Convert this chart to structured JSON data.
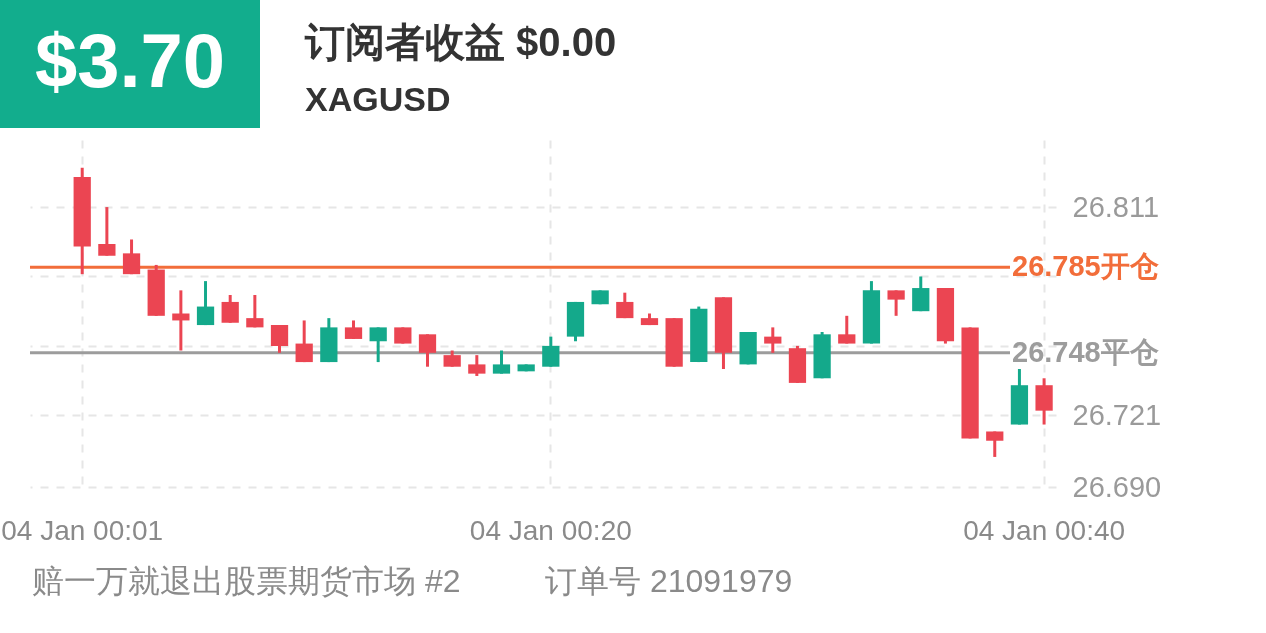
{
  "chart_data": {
    "type": "candlestick",
    "title": "订阅者收益 $0.00",
    "subtitle": "XAGUSD",
    "categories": [
      "04 Jan 00:01",
      null,
      null,
      null,
      null,
      null,
      null,
      null,
      null,
      null,
      null,
      null,
      null,
      null,
      null,
      null,
      null,
      null,
      null,
      "04 Jan 00:20",
      null,
      null,
      null,
      null,
      null,
      null,
      null,
      null,
      null,
      null,
      null,
      null,
      null,
      null,
      null,
      null,
      null,
      null,
      null,
      "04 Jan 00:40"
    ],
    "ohlc": [
      [
        26.824,
        26.828,
        26.782,
        26.794
      ],
      [
        26.795,
        26.811,
        26.79,
        26.79
      ],
      [
        26.791,
        26.797,
        26.782,
        26.782
      ],
      [
        26.784,
        26.786,
        26.764,
        26.764
      ],
      [
        26.765,
        26.775,
        26.749,
        26.762
      ],
      [
        26.76,
        26.779,
        26.76,
        26.768
      ],
      [
        26.77,
        26.773,
        26.761,
        26.761
      ],
      [
        26.763,
        26.773,
        26.759,
        26.759
      ],
      [
        26.76,
        26.76,
        26.748,
        26.751
      ],
      [
        26.752,
        26.762,
        26.744,
        26.744
      ],
      [
        26.744,
        26.763,
        26.744,
        26.759
      ],
      [
        26.759,
        26.762,
        26.754,
        26.754
      ],
      [
        26.753,
        26.759,
        26.744,
        26.759
      ],
      [
        26.759,
        26.759,
        26.752,
        26.752
      ],
      [
        26.756,
        26.756,
        26.742,
        26.748
      ],
      [
        26.747,
        26.749,
        26.742,
        26.742
      ],
      [
        26.743,
        26.747,
        26.738,
        26.739
      ],
      [
        26.739,
        26.749,
        26.739,
        26.743
      ],
      [
        26.74,
        26.743,
        26.74,
        26.743
      ],
      [
        26.742,
        26.755,
        26.742,
        26.751
      ],
      [
        26.755,
        26.77,
        26.753,
        26.77
      ],
      [
        26.769,
        26.775,
        26.769,
        26.775
      ],
      [
        26.77,
        26.774,
        26.763,
        26.763
      ],
      [
        26.763,
        26.765,
        26.76,
        26.76
      ],
      [
        26.763,
        26.763,
        26.742,
        26.742
      ],
      [
        26.744,
        26.768,
        26.744,
        26.767
      ],
      [
        26.772,
        26.772,
        26.741,
        26.748
      ],
      [
        26.743,
        26.757,
        26.743,
        26.757
      ],
      [
        26.755,
        26.759,
        26.748,
        26.752
      ],
      [
        26.75,
        26.751,
        26.735,
        26.735
      ],
      [
        26.737,
        26.757,
        26.737,
        26.756
      ],
      [
        26.756,
        26.764,
        26.752,
        26.752
      ],
      [
        26.752,
        26.779,
        26.752,
        26.775
      ],
      [
        26.775,
        26.775,
        26.764,
        26.771
      ],
      [
        26.766,
        26.781,
        26.766,
        26.776
      ],
      [
        26.776,
        26.776,
        26.752,
        26.753
      ],
      [
        26.759,
        26.759,
        26.711,
        26.711
      ],
      [
        26.714,
        26.714,
        26.703,
        26.71
      ],
      [
        26.717,
        26.741,
        26.717,
        26.734
      ],
      [
        26.734,
        26.737,
        26.717,
        26.723
      ]
    ],
    "colors": [
      "#eb4552",
      "#eb4552",
      "#eb4552",
      "#eb4552",
      "#eb4552",
      "#14a98b",
      "#eb4552",
      "#eb4552",
      "#eb4552",
      "#eb4552",
      "#14a98b",
      "#eb4552",
      "#14a98b",
      "#eb4552",
      "#eb4552",
      "#eb4552",
      "#eb4552",
      "#14a98b",
      "#14a98b",
      "#14a98b",
      "#14a98b",
      "#14a98b",
      "#eb4552",
      "#eb4552",
      "#eb4552",
      "#14a98b",
      "#eb4552",
      "#14a98b",
      "#eb4552",
      "#eb4552",
      "#14a98b",
      "#eb4552",
      "#14a98b",
      "#eb4552",
      "#14a98b",
      "#eb4552",
      "#eb4552",
      "#eb4552",
      "#14a98b",
      "#eb4552"
    ],
    "ylim": [
      26.69,
      26.84
    ],
    "yticks": [
      {
        "value": 26.69,
        "label": "26.690"
      },
      26.721,
      {
        "value": 26.751,
        "label": null
      },
      {
        "value": 26.781,
        "label": null
      },
      26.811
    ],
    "ref_lines": [
      {
        "axis": "y",
        "value": 26.785,
        "label": "26.785开仓",
        "color": "#f26d3a"
      },
      {
        "axis": "y",
        "value": 26.748,
        "label": "26.748平仓",
        "color": "#9c9c9c"
      }
    ],
    "grid": true,
    "annotations": [
      "$3.70",
      "赔一万就退出股票期货市场 #2",
      "订单号 21091979"
    ]
  }
}
